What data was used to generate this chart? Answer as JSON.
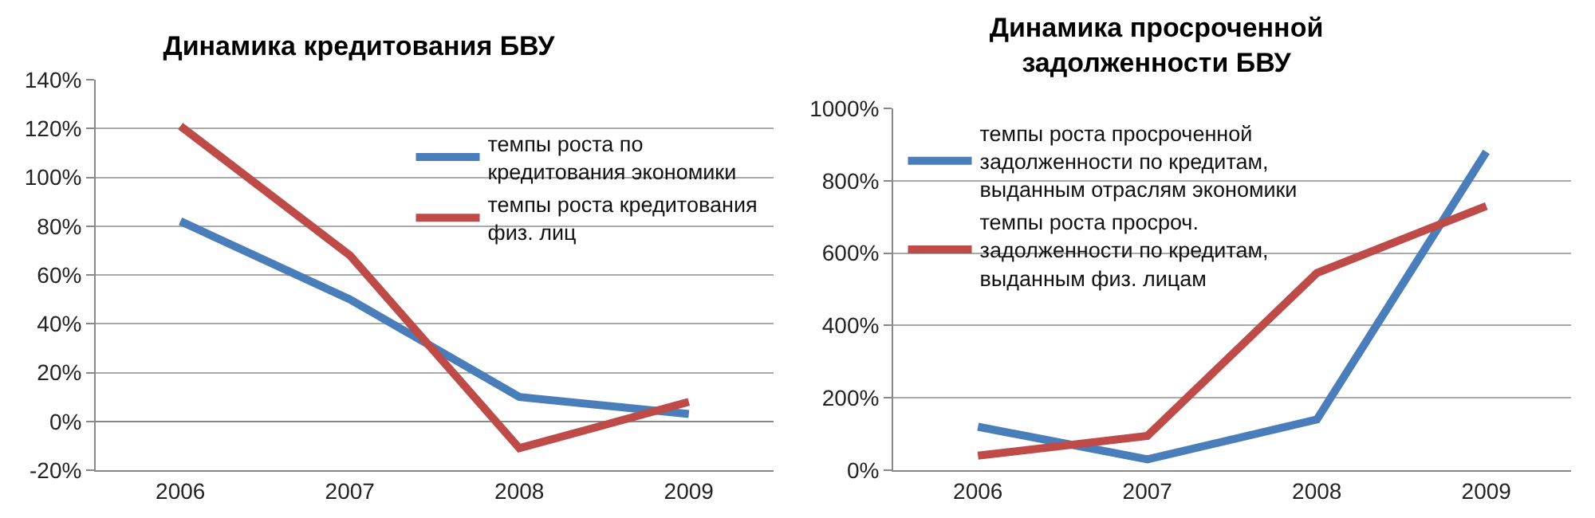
{
  "chart_data": [
    {
      "type": "line",
      "title": "Динамика кредитования БВУ",
      "categories": [
        "2006",
        "2007",
        "2008",
        "2009"
      ],
      "series": [
        {
          "name": "темпы роста по кредитования экономики",
          "color": "#4a7ebb",
          "values": [
            82,
            50,
            10,
            3
          ]
        },
        {
          "name": "темпы роста кредитования физ. лиц",
          "color": "#be4b48",
          "values": [
            121,
            68,
            -11,
            8
          ]
        }
      ],
      "ylim": [
        -20,
        140
      ],
      "yticks": [
        {
          "value": -20,
          "label": "-20%"
        },
        {
          "value": 0,
          "label": "0%"
        },
        {
          "value": 20,
          "label": "20%"
        },
        {
          "value": 40,
          "label": "40%"
        },
        {
          "value": 60,
          "label": "60%"
        },
        {
          "value": 80,
          "label": "80%"
        },
        {
          "value": 100,
          "label": "100%"
        },
        {
          "value": 120,
          "label": "120%"
        },
        {
          "value": 140,
          "label": "140%"
        }
      ],
      "grid": "y",
      "legend": "top right",
      "marker": "none",
      "line_style": "solid"
    },
    {
      "type": "line",
      "title": "Динамика просроченной задолженности БВУ",
      "categories": [
        "2006",
        "2007",
        "2008",
        "2009"
      ],
      "series": [
        {
          "name": "темпы роста просроченной задолженности по кредитам, выданным отраслям экономики",
          "color": "#4a7ebb",
          "values": [
            120,
            30,
            140,
            880
          ]
        },
        {
          "name": "темпы роста просроч. задолженности по кредитам, выданным физ. лицам",
          "color": "#be4b48",
          "values": [
            40,
            95,
            545,
            730
          ]
        }
      ],
      "ylim": [
        0,
        1000
      ],
      "yticks": [
        {
          "value": 0,
          "label": "0%"
        },
        {
          "value": 200,
          "label": "200%"
        },
        {
          "value": 400,
          "label": "400%"
        },
        {
          "value": 600,
          "label": "600%"
        },
        {
          "value": 800,
          "label": "800%"
        },
        {
          "value": 1000,
          "label": "1000%"
        }
      ],
      "grid": "y",
      "legend": "top left",
      "marker": "none",
      "line_style": "solid"
    }
  ]
}
